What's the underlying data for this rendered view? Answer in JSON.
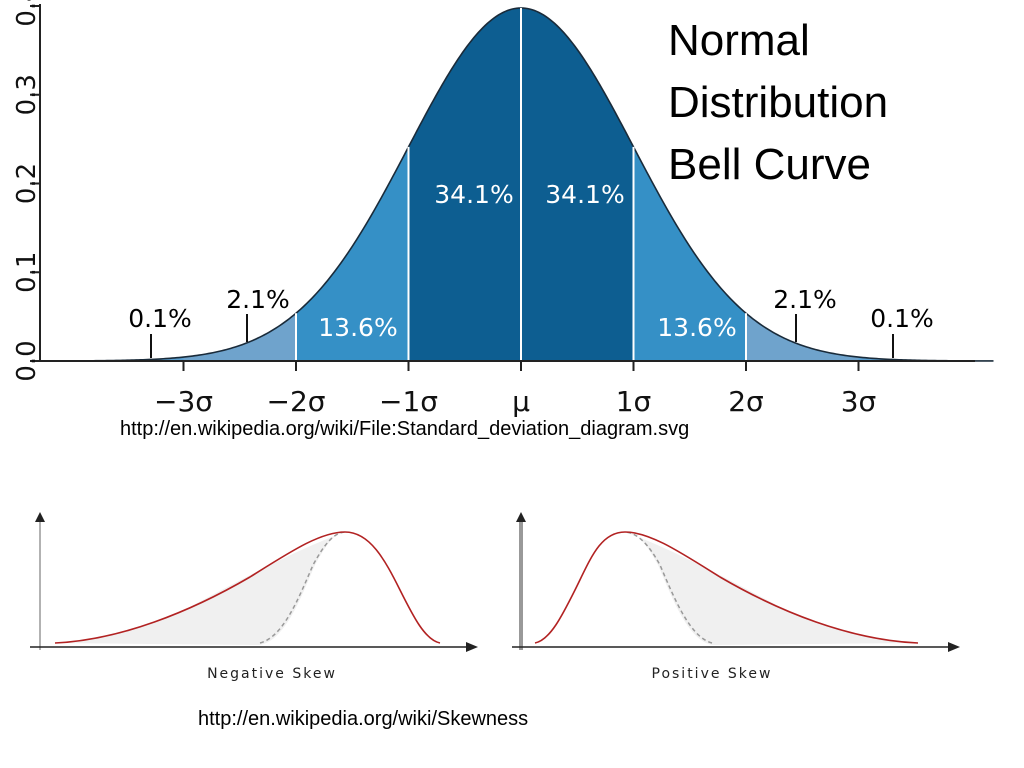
{
  "slide": {
    "title_lines": [
      "Normal",
      "Distribution",
      "Bell Curve"
    ],
    "normal_source": "http://en.wikipedia.org/wiki/File:Standard_deviation_diagram.svg",
    "skew_source": "http://en.wikipedia.org/wiki/Skewness"
  },
  "chart_data": [
    {
      "type": "area",
      "title": "",
      "x_ticks": [
        "−3σ",
        "−2σ",
        "−1σ",
        "μ",
        "1σ",
        "2σ",
        "3σ"
      ],
      "x_tick_values": [
        -3,
        -2,
        -1,
        0,
        1,
        2,
        3
      ],
      "y_ticks": [
        "0.0",
        "0.1",
        "0.2",
        "0.3",
        "0.4"
      ],
      "y_tick_values": [
        0.0,
        0.1,
        0.2,
        0.3,
        0.4
      ],
      "xlim": [
        -4,
        4
      ],
      "ylim": [
        0,
        0.4
      ],
      "bands": [
        {
          "from": -3.5,
          "to": -3,
          "label": "0.1%",
          "color": "#5a9fd0"
        },
        {
          "from": -3,
          "to": -2,
          "label": "2.1%",
          "color": "#6fa3cc"
        },
        {
          "from": -2,
          "to": -1,
          "label": "13.6%",
          "color": "#3590c6"
        },
        {
          "from": -1,
          "to": 0,
          "label": "34.1%",
          "color": "#0d5e91"
        },
        {
          "from": 0,
          "to": 1,
          "label": "34.1%",
          "color": "#0d5e91"
        },
        {
          "from": 1,
          "to": 2,
          "label": "13.6%",
          "color": "#3590c6"
        },
        {
          "from": 2,
          "to": 3,
          "label": "2.1%",
          "color": "#6fa3cc"
        },
        {
          "from": 3,
          "to": 3.5,
          "label": "0.1%",
          "color": "#5a9fd0"
        }
      ],
      "band_label_color_inner": "#ffffff",
      "band_label_color_outer": "#000000"
    },
    {
      "type": "area",
      "title": "Negative Skew",
      "curve_color": "#b22222",
      "fill_color": "#f0f0f0",
      "reference_color": "#999999"
    },
    {
      "type": "area",
      "title": "Positive Skew",
      "curve_color": "#b22222",
      "fill_color": "#f0f0f0",
      "reference_color": "#999999"
    }
  ]
}
